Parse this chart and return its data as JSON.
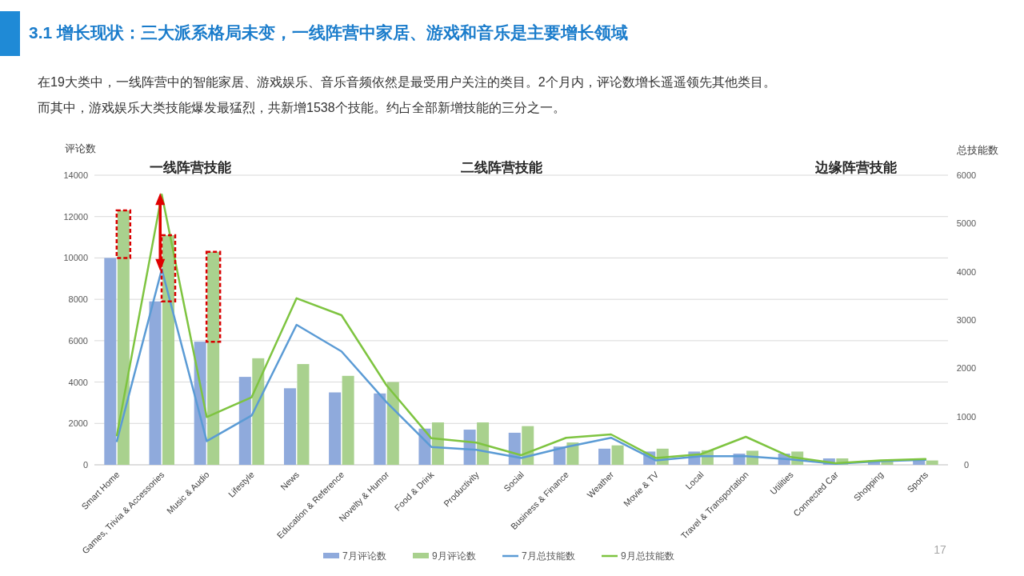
{
  "chart_data": {
    "type": "bar",
    "title": "3.1 增长现状：三大派系格局未变，一线阵营中家居、游戏和音乐是主要增长领域",
    "subtitle": "在19大类中，一线阵营中的智能家居、游戏娱乐、音乐音频依然是最受用户关注的类目。2个月内，评论数增长遥遥领先其他类目。而其中，游戏娱乐大类技能爆发最猛烈，共新增1538个技能。约占全部新增技能的三分之一。",
    "ylabel": "评论数",
    "y2label": "总技能数",
    "categories": [
      "Smart Home",
      "Games, Trivia & Accessories",
      "Music & Audio",
      "Lifestyle",
      "News",
      "Education & Reference",
      "Novelty & Humor",
      "Food & Drink",
      "Productivity",
      "Social",
      "Business & Finance",
      "Weather",
      "Movie & TV",
      "Local",
      "Travel & Transportation",
      "Utilities",
      "Connected Car",
      "Shopping",
      "Sports"
    ],
    "series": [
      {
        "name": "7月评论数",
        "color": "#8faadc",
        "values": [
          10000,
          7900,
          5950,
          4250,
          3700,
          3500,
          3450,
          1750,
          1700,
          1550,
          880,
          780,
          640,
          640,
          540,
          540,
          310,
          210,
          250
        ]
      },
      {
        "name": "9月评论数",
        "color": "#a9d18e",
        "values": [
          12300,
          11100,
          10300,
          5150,
          4870,
          4300,
          4000,
          2050,
          2050,
          1870,
          1080,
          940,
          780,
          700,
          680,
          640,
          310,
          210,
          210
        ]
      },
      {
        "name": "7月总技能数",
        "type": "line",
        "axis": "y2",
        "color": "#5b9bd5",
        "values": [
          490,
          4050,
          490,
          1020,
          2900,
          2350,
          1300,
          370,
          310,
          140,
          370,
          560,
          90,
          180,
          180,
          110,
          20,
          75,
          105
        ]
      },
      {
        "name": "9月总技能数",
        "type": "line",
        "axis": "y2",
        "color": "#7ec440",
        "values": [
          610,
          5600,
          990,
          1400,
          3450,
          3100,
          1650,
          550,
          460,
          200,
          560,
          630,
          140,
          220,
          580,
          160,
          35,
          90,
          120
        ]
      }
    ],
    "ylim": [
      0,
      14000
    ],
    "yticks": [
      0,
      2000,
      4000,
      6000,
      8000,
      10000,
      12000,
      14000
    ],
    "y2lim": [
      0,
      6000
    ],
    "y2ticks": [
      0,
      1000,
      2000,
      3000,
      4000,
      5000,
      6000
    ],
    "grid": "y",
    "legend": "bottom",
    "annotations": [
      "一线阵营技能",
      "二线阵营技能",
      "边缘阵营技能",
      "17"
    ]
  }
}
